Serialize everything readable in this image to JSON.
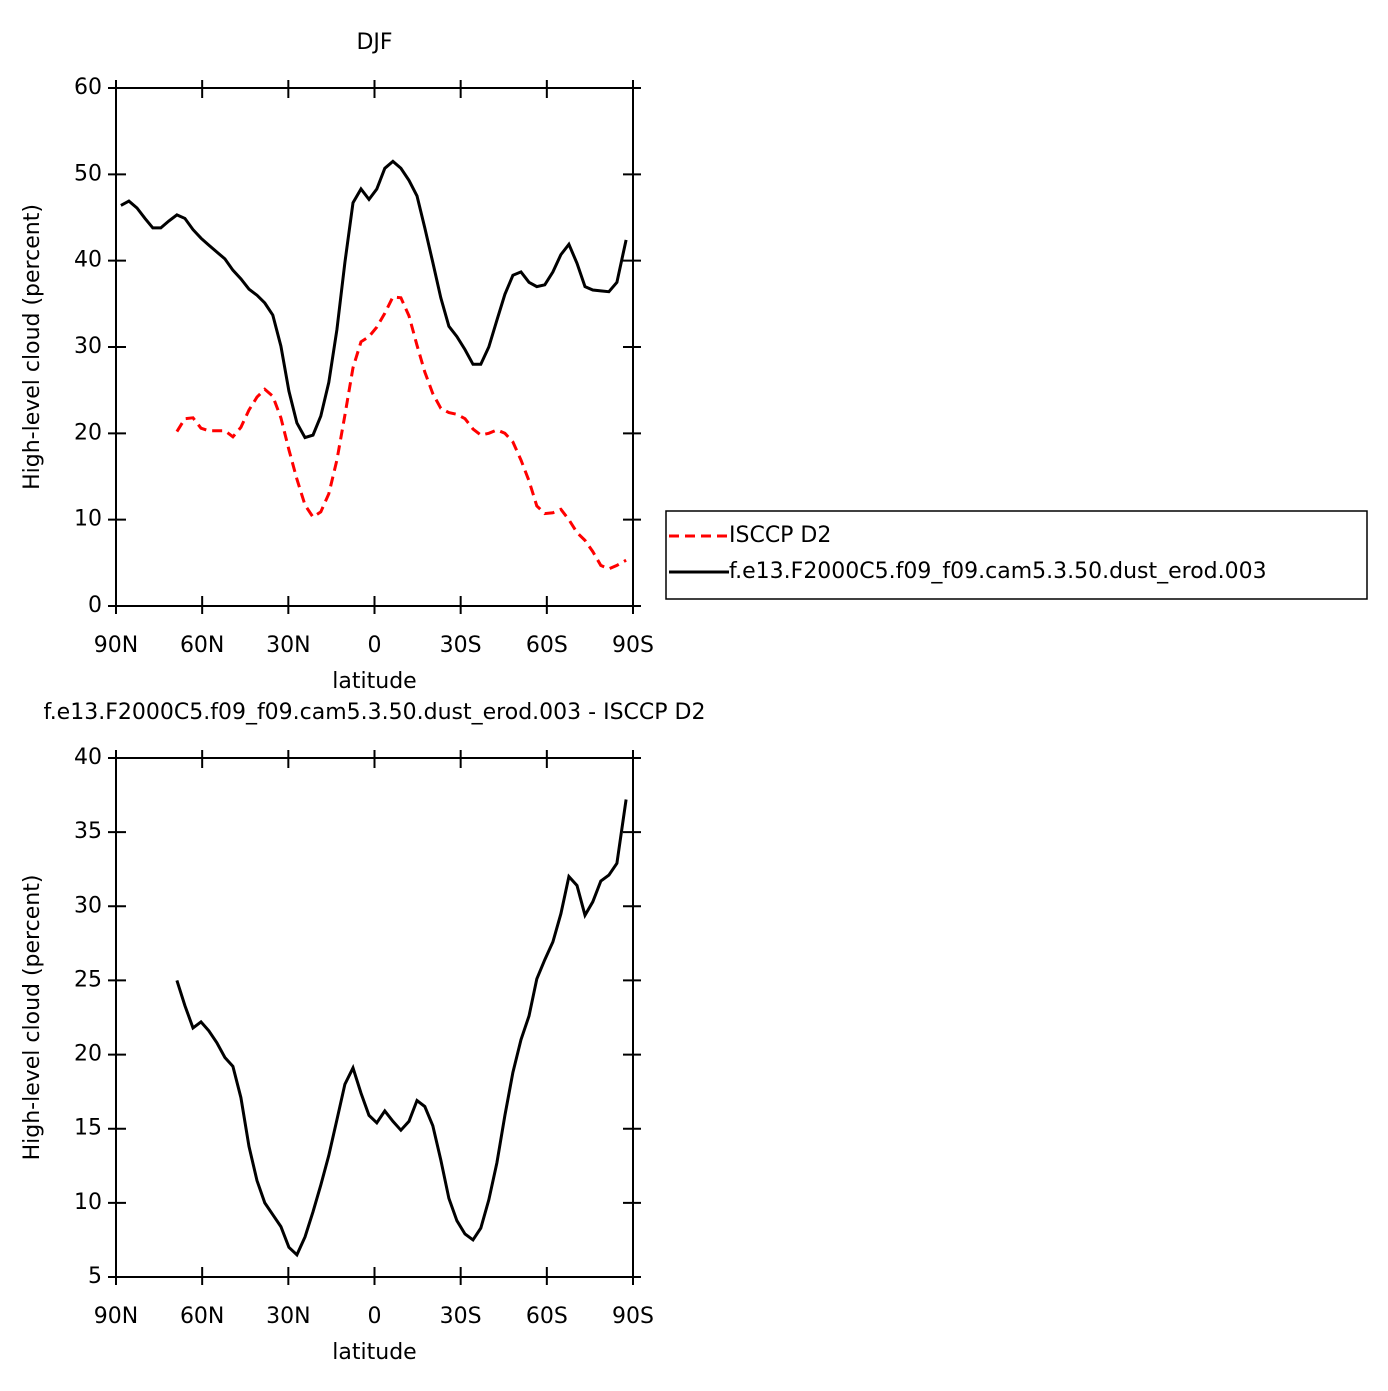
{
  "chart_data": [
    {
      "type": "line",
      "title": "DJF",
      "xlabel": "latitude",
      "ylabel": "High-level cloud (percent)",
      "x": [
        88.3,
        85.5,
        82.7,
        79.9,
        77.2,
        74.4,
        71.6,
        68.8,
        66.0,
        63.2,
        60.4,
        57.7,
        54.9,
        52.1,
        49.3,
        46.5,
        43.7,
        40.9,
        38.2,
        35.4,
        32.6,
        29.8,
        27.0,
        24.2,
        21.4,
        18.7,
        15.9,
        13.1,
        10.3,
        7.5,
        4.7,
        1.9,
        -0.8,
        -3.6,
        -6.4,
        -9.2,
        -12.0,
        -14.8,
        -17.5,
        -20.3,
        -23.1,
        -25.9,
        -28.7,
        -31.5,
        -34.3,
        -37.0,
        -39.8,
        -42.6,
        -45.4,
        -48.2,
        -51.0,
        -53.8,
        -56.5,
        -59.3,
        -62.1,
        -64.9,
        -67.7,
        -70.5,
        -73.3,
        -76.0,
        -78.8,
        -81.6,
        -84.4,
        -87.6
      ],
      "series": [
        {
          "name": "ISCCP D2",
          "color": "#ff0000",
          "dash": "dashed",
          "values": [
            null,
            null,
            null,
            null,
            null,
            null,
            null,
            20.2,
            21.7,
            21.8,
            20.6,
            20.3,
            20.3,
            20.3,
            19.6,
            20.7,
            22.7,
            24.2,
            25.1,
            24.3,
            21.8,
            18.1,
            14.7,
            11.7,
            10.3,
            10.9,
            13.0,
            16.9,
            22.1,
            27.6,
            30.6,
            31.2,
            32.3,
            33.9,
            35.8,
            35.7,
            33.6,
            30.2,
            27.1,
            24.6,
            22.9,
            22.4,
            22.2,
            21.7,
            20.5,
            19.8,
            20.0,
            20.4,
            20.0,
            19.0,
            16.9,
            14.5,
            11.6,
            10.7,
            10.8,
            11.2,
            10.0,
            8.5,
            7.6,
            6.3,
            4.7,
            4.3,
            4.7,
            5.3
          ]
        },
        {
          "name": "f.e13.F2000C5.f09_f09.cam5.3.50.dust_erod.003",
          "color": "#000000",
          "dash": "solid",
          "values": [
            46.4,
            46.9,
            46.1,
            44.9,
            43.8,
            43.8,
            44.6,
            45.3,
            44.9,
            43.6,
            42.6,
            41.8,
            41.0,
            40.2,
            38.9,
            37.9,
            36.7,
            36.0,
            35.1,
            33.7,
            30.1,
            24.9,
            21.2,
            19.5,
            19.8,
            22.0,
            25.9,
            32.0,
            39.8,
            46.7,
            48.3,
            47.1,
            48.3,
            50.7,
            51.5,
            50.7,
            49.3,
            47.5,
            43.8,
            39.8,
            35.7,
            32.4,
            31.2,
            29.7,
            28.0,
            28.0,
            30.0,
            33.1,
            36.1,
            38.3,
            38.7,
            37.5,
            37.0,
            37.2,
            38.7,
            40.7,
            41.9,
            39.7,
            37.0,
            36.6,
            36.5,
            36.4,
            37.5,
            42.4
          ]
        }
      ],
      "xlim": [
        90,
        -90
      ],
      "xticks": [
        {
          "value": 90,
          "label": "90N"
        },
        {
          "value": 60,
          "label": "60N"
        },
        {
          "value": 30,
          "label": "30N"
        },
        0,
        {
          "value": -30,
          "label": "30S"
        },
        {
          "value": -60,
          "label": "60S"
        },
        {
          "value": -90,
          "label": "90S"
        }
      ],
      "ylim": [
        0,
        60
      ],
      "yticks": [
        0,
        10,
        20,
        30,
        40,
        50,
        60
      ],
      "legend": "outside right"
    },
    {
      "type": "line",
      "title": "f.e13.F2000C5.f09_f09.cam5.3.50.dust_erod.003 - ISCCP D2",
      "xlabel": "latitude",
      "ylabel": "High-level cloud (percent)",
      "x": [
        88.3,
        85.5,
        82.7,
        79.9,
        77.2,
        74.4,
        71.6,
        68.8,
        66.0,
        63.2,
        60.4,
        57.7,
        54.9,
        52.1,
        49.3,
        46.5,
        43.7,
        40.9,
        38.2,
        35.4,
        32.6,
        29.8,
        27.0,
        24.2,
        21.4,
        18.7,
        15.9,
        13.1,
        10.3,
        7.5,
        4.7,
        1.9,
        -0.8,
        -3.6,
        -6.4,
        -9.2,
        -12.0,
        -14.8,
        -17.5,
        -20.3,
        -23.1,
        -25.9,
        -28.7,
        -31.5,
        -34.3,
        -37.0,
        -39.8,
        -42.6,
        -45.4,
        -48.2,
        -51.0,
        -53.8,
        -56.5,
        -59.3,
        -62.1,
        -64.9,
        -67.7,
        -70.5,
        -73.3,
        -76.0,
        -78.8,
        -81.6,
        -84.4,
        -87.6
      ],
      "series": [
        {
          "color": "#000000",
          "dash": "solid",
          "values": [
            null,
            null,
            null,
            null,
            null,
            null,
            null,
            25.0,
            23.3,
            21.8,
            22.2,
            21.6,
            20.8,
            19.8,
            19.2,
            17.1,
            13.8,
            11.5,
            10.0,
            9.2,
            8.4,
            7.0,
            6.5,
            7.7,
            9.4,
            11.2,
            13.2,
            15.6,
            18.0,
            19.1,
            17.4,
            15.9,
            15.4,
            16.2,
            15.5,
            14.9,
            15.5,
            16.9,
            16.5,
            15.2,
            12.9,
            10.3,
            8.8,
            7.9,
            7.5,
            8.3,
            10.2,
            12.7,
            15.9,
            18.8,
            21.0,
            22.6,
            25.1,
            26.4,
            27.6,
            29.5,
            32.0,
            31.4,
            29.4,
            30.3,
            31.7,
            32.1,
            32.9,
            37.2
          ]
        }
      ],
      "xlim": [
        90,
        -90
      ],
      "xticks": [
        {
          "value": 90,
          "label": "90N"
        },
        {
          "value": 60,
          "label": "60N"
        },
        {
          "value": 30,
          "label": "30N"
        },
        0,
        {
          "value": -30,
          "label": "30S"
        },
        {
          "value": -60,
          "label": "60S"
        },
        {
          "value": -90,
          "label": "90S"
        }
      ],
      "ylim": [
        5,
        40
      ],
      "yticks": [
        5,
        10,
        15,
        20,
        25,
        30,
        35,
        40
      ]
    }
  ]
}
